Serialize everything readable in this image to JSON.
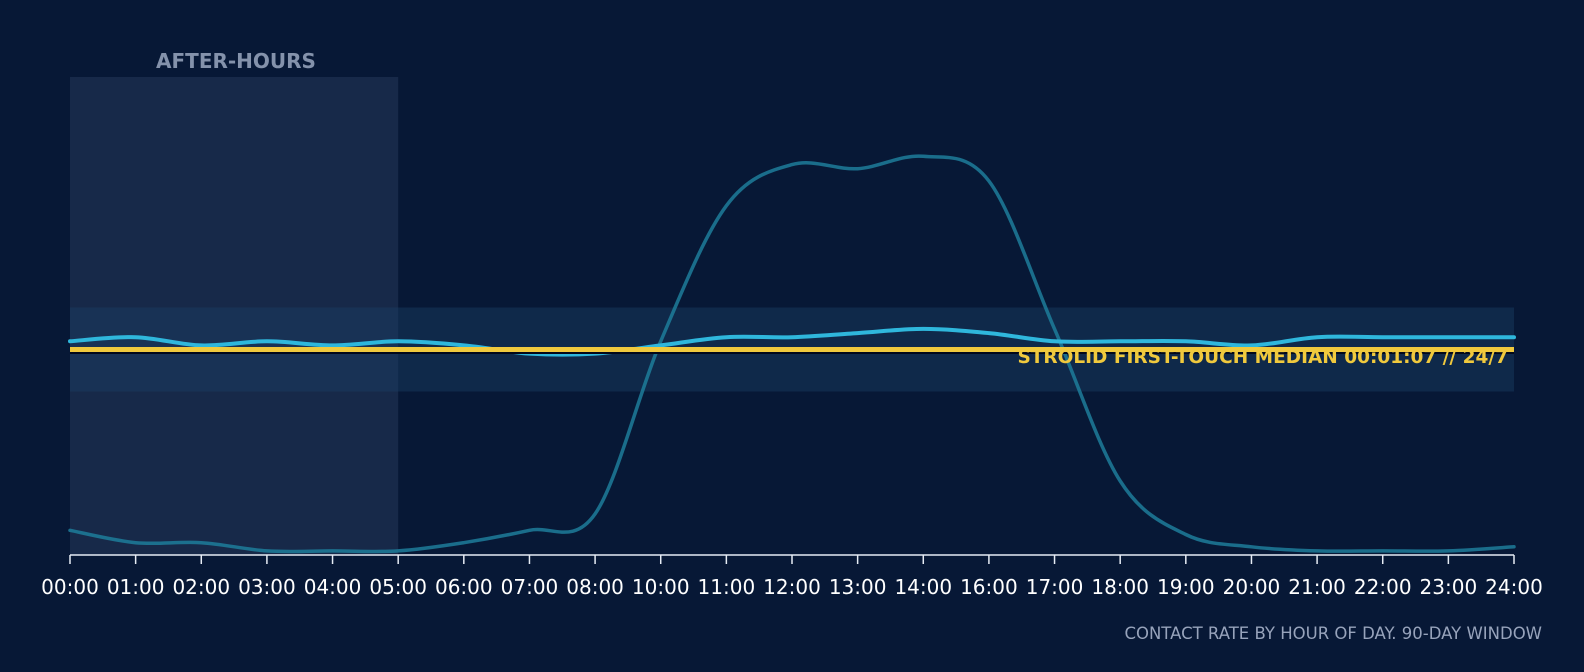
{
  "chart_data": {
    "type": "line",
    "x_tick_labels": [
      "00:00",
      "01:00",
      "02:00",
      "03:00",
      "04:00",
      "05:00",
      "06:00",
      "07:00",
      "08:00",
      "10:00",
      "11:00",
      "12:00",
      "13:00",
      "14:00",
      "16:00",
      "17:00",
      "18:00",
      "19:00",
      "20:00",
      "21:00",
      "22:00",
      "23:00",
      "24:00"
    ],
    "shaded_region": {
      "label": "AFTER-HOURS",
      "from": "00:00",
      "to": "05:00"
    },
    "reference_line": {
      "label": "STROLID FIRST-TOUCH MEDIAN 00:01:07 // 24/7",
      "value": 0.5
    },
    "series": [
      {
        "name": "",
        "color": "#2fb7dc",
        "values": [
          0.52,
          0.53,
          0.51,
          0.52,
          0.51,
          0.52,
          0.51,
          0.49,
          0.49,
          0.51,
          0.53,
          0.53,
          0.54,
          0.55,
          0.54,
          0.52,
          0.52,
          0.52,
          0.51,
          0.53,
          0.53,
          0.53,
          0.53
        ]
      },
      {
        "name": "",
        "color": "#1d7d9a",
        "values": [
          0.06,
          0.03,
          0.03,
          0.01,
          0.01,
          0.01,
          0.03,
          0.06,
          0.1,
          0.52,
          0.85,
          0.95,
          0.94,
          0.97,
          0.91,
          0.55,
          0.18,
          0.05,
          0.02,
          0.01,
          0.01,
          0.01,
          0.02
        ]
      }
    ],
    "grid": false,
    "caption": "CONTACT RATE BY HOUR OF DAY. 90-DAY WINDOW"
  },
  "colors": {
    "background": "#071836",
    "median_line": "#f0c93d",
    "primary_line": "#2fb7dc",
    "secondary_line": "#1d7d9a"
  }
}
